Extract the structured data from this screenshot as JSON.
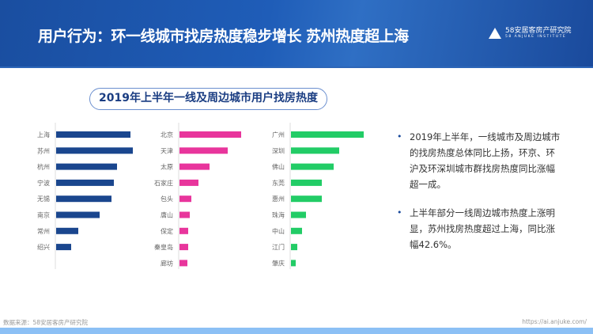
{
  "header": {
    "title": "用户行为：环一线城市找房热度稳步增长 苏州热度超上海",
    "logo_text": "58安居客房产研究院",
    "logo_sub": "58 ANJUKE INSTITUTE"
  },
  "subtitle": "2019年上半年一线及周边城市用户找房热度",
  "chart_data": [
    {
      "type": "bar",
      "orientation": "horizontal",
      "color": "#1a468e",
      "categories": [
        "上海",
        "苏州",
        "杭州",
        "宁波",
        "无锡",
        "南京",
        "常州",
        "绍兴"
      ],
      "values": [
        94,
        97,
        77,
        73,
        70,
        55,
        28,
        19
      ]
    },
    {
      "type": "bar",
      "orientation": "horizontal",
      "color": "#e8359c",
      "categories": [
        "北京",
        "天津",
        "太原",
        "石家庄",
        "包头",
        "唐山",
        "保定",
        "秦皇岛",
        "廊坊"
      ],
      "values": [
        78,
        61,
        38,
        24,
        15,
        13,
        11,
        11,
        10
      ]
    },
    {
      "type": "bar",
      "orientation": "horizontal",
      "color": "#22cc66",
      "categories": [
        "广州",
        "深圳",
        "佛山",
        "东莞",
        "惠州",
        "珠海",
        "中山",
        "江门",
        "肇庆"
      ],
      "values": [
        92,
        61,
        54,
        39,
        39,
        19,
        14,
        8,
        6
      ]
    }
  ],
  "bullets": [
    "2019年上半年，一线城市及周边城市的找房热度总体同比上扬，环京、环沪及环深圳城市群找房热度同比涨幅超一成。",
    "上半年部分一线周边城市热度上涨明显，苏州找房热度超过上海，同比涨幅42.6%。"
  ],
  "footer": {
    "source": "数据来源：58安居客房产研究院",
    "url": "https://ai.anjuke.com/"
  }
}
